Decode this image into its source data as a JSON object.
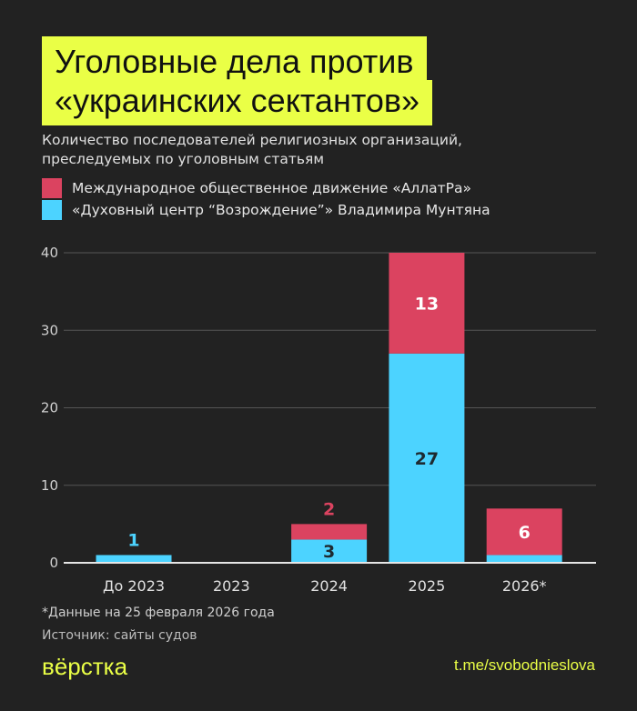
{
  "title_lines": [
    "Уголовные дела против",
    "«украинских сектантов»"
  ],
  "subtitle": "Количество последователей религиозных организаций, преследуемых по уголовным статьям",
  "footnote": "*Данные на 25 февраля 2026 года",
  "source": "Источник: сайты судов",
  "logo": "вёрстка",
  "link": "t.me/svobodnieslova",
  "colors": {
    "background": "#222222",
    "accent": "#eaff46",
    "allatra": "#db4360",
    "vozrozhdenie": "#4cd3ff"
  },
  "chart_data": {
    "type": "bar",
    "stacked": true,
    "categories": [
      "До 2023",
      "2023",
      "2024",
      "2025",
      "2026*"
    ],
    "series": [
      {
        "name": "«Духовный центр “Возрождение”» Владимира Мунтяна",
        "color": "#4cd3ff",
        "values": [
          1,
          0,
          3,
          27,
          1
        ],
        "labels": [
          "1",
          null,
          "3",
          "27",
          null
        ]
      },
      {
        "name": "Международное общественное движение «АллатРа»",
        "color": "#db4360",
        "values": [
          0,
          0,
          2,
          13,
          6
        ],
        "labels": [
          null,
          null,
          "2",
          "13",
          "6"
        ]
      }
    ],
    "legend_order": [
      1,
      0
    ],
    "ylim": [
      0,
      40
    ],
    "yticks": [
      "0",
      "10",
      "20",
      "30",
      "40"
    ],
    "grid": true,
    "legend_placement": "top-left"
  }
}
